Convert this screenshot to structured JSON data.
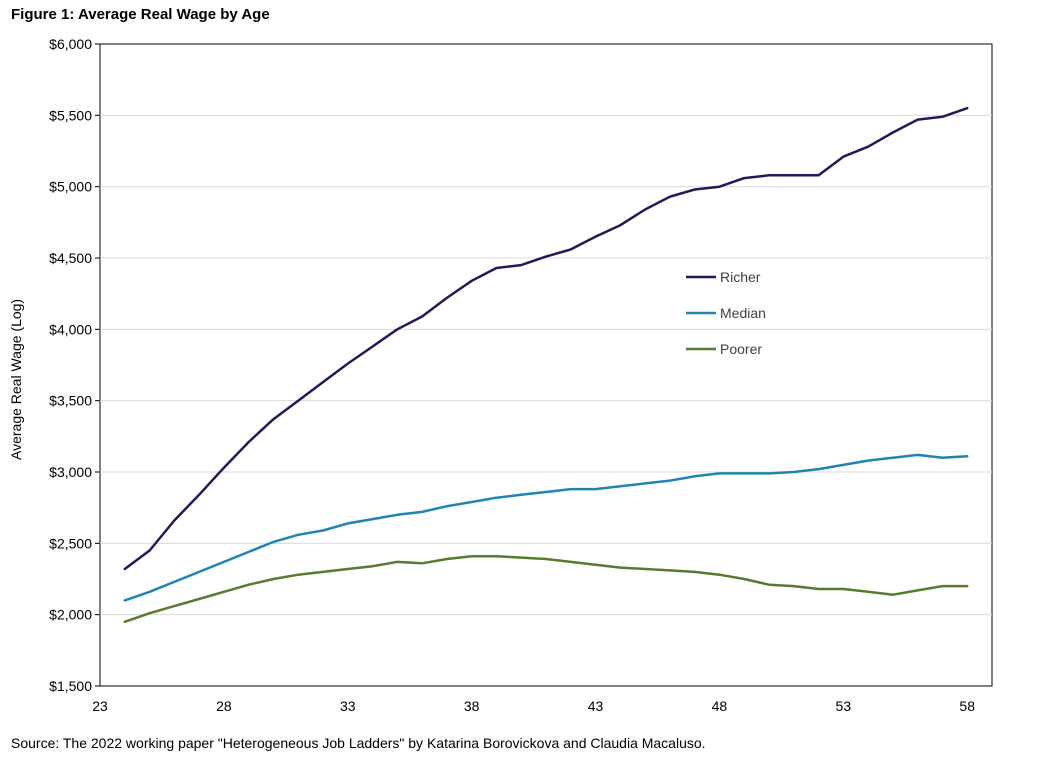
{
  "chart_data": {
    "type": "line",
    "title": "Figure 1: Average Real Wage by Age",
    "ylabel": "Average Real Wage (Log)",
    "xlabel": "",
    "xlim": [
      23,
      59
    ],
    "ylim": [
      1500,
      6000
    ],
    "x_ticks": [
      23,
      28,
      33,
      38,
      43,
      48,
      53,
      58
    ],
    "y_ticks": [
      1500,
      2000,
      2500,
      3000,
      3500,
      4000,
      4500,
      5000,
      5500,
      6000
    ],
    "y_tick_labels": [
      "$1,500",
      "$2,000",
      "$2,500",
      "$3,000",
      "$3,500",
      "$4,000",
      "$4,500",
      "$5,000",
      "$5,500",
      "$6,000"
    ],
    "grid": "horizontal",
    "legend_position": "center-right",
    "x": [
      24,
      25,
      26,
      27,
      28,
      29,
      30,
      31,
      32,
      33,
      34,
      35,
      36,
      37,
      38,
      39,
      40,
      41,
      42,
      43,
      44,
      45,
      46,
      47,
      48,
      49,
      50,
      51,
      52,
      53,
      54,
      55,
      56,
      57,
      58
    ],
    "series": [
      {
        "name": "Richer",
        "color": "#1f1a5c",
        "values": [
          2320,
          2450,
          2660,
          2840,
          3030,
          3210,
          3370,
          3500,
          3630,
          3760,
          3880,
          4000,
          4090,
          4220,
          4340,
          4430,
          4450,
          4510,
          4560,
          4650,
          4730,
          4840,
          4930,
          4980,
          5000,
          5060,
          5080,
          5080,
          5080,
          5210,
          5280,
          5380,
          5470,
          5490,
          5550
        ]
      },
      {
        "name": "Median",
        "color": "#1f84b4",
        "values": [
          2100,
          2160,
          2230,
          2300,
          2370,
          2440,
          2510,
          2560,
          2590,
          2640,
          2670,
          2700,
          2720,
          2760,
          2790,
          2820,
          2840,
          2860,
          2880,
          2880,
          2900,
          2920,
          2940,
          2970,
          2990,
          2990,
          2990,
          3000,
          3020,
          3050,
          3080,
          3100,
          3120,
          3100,
          3110
        ]
      },
      {
        "name": "Poorer",
        "color": "#5a7a2e",
        "values": [
          1950,
          2010,
          2060,
          2110,
          2160,
          2210,
          2250,
          2280,
          2300,
          2320,
          2340,
          2370,
          2360,
          2390,
          2410,
          2410,
          2400,
          2390,
          2370,
          2350,
          2330,
          2320,
          2310,
          2300,
          2280,
          2250,
          2210,
          2200,
          2180,
          2180,
          2160,
          2140,
          2170,
          2200,
          2200
        ]
      }
    ]
  },
  "source_note": "Source: The 2022  working paper \"Heterogeneous Job Ladders\" by Katarina Borovickova and Claudia Macaluso."
}
